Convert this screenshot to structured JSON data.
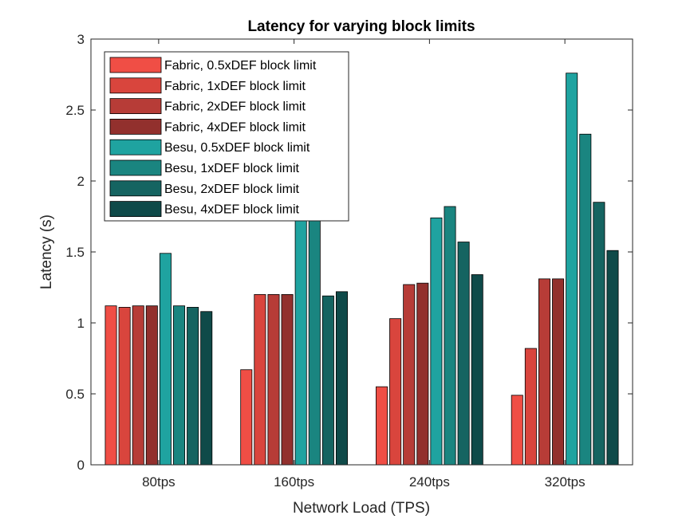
{
  "chart_data": {
    "type": "bar",
    "title": "Latency for varying block limits",
    "xlabel": "Network Load (TPS)",
    "ylabel": "Latency (s)",
    "categories": [
      "80tps",
      "160tps",
      "240tps",
      "320tps"
    ],
    "ylim": [
      0,
      3
    ],
    "yticks": [
      0,
      0.5,
      1,
      1.5,
      2,
      2.5,
      3
    ],
    "ytick_labels": [
      "0",
      "0.5",
      "1",
      "1.5",
      "2",
      "2.5",
      "3"
    ],
    "grid": false,
    "legend_position": "top-left",
    "series": [
      {
        "name": "Fabric, 0.5xDEF block limit",
        "color": "#f04e45",
        "values": [
          1.12,
          0.67,
          0.55,
          0.49
        ]
      },
      {
        "name": "Fabric, 1xDEF block limit",
        "color": "#d9453d",
        "values": [
          1.11,
          1.2,
          1.03,
          0.82
        ]
      },
      {
        "name": "Fabric, 2xDEF block limit",
        "color": "#b73c37",
        "values": [
          1.12,
          1.2,
          1.27,
          1.31
        ]
      },
      {
        "name": "Fabric, 4xDEF block limit",
        "color": "#92302d",
        "values": [
          1.12,
          1.2,
          1.28,
          1.31
        ]
      },
      {
        "name": "Besu, 0.5xDEF block limit",
        "color": "#1fa3a0",
        "values": [
          1.49,
          1.82,
          1.74,
          2.76
        ]
      },
      {
        "name": "Besu, 1xDEF block limit",
        "color": "#1a8580",
        "values": [
          1.12,
          1.82,
          1.82,
          2.33
        ]
      },
      {
        "name": "Besu, 2xDEF block limit",
        "color": "#156461",
        "values": [
          1.11,
          1.19,
          1.57,
          1.85
        ]
      },
      {
        "name": "Besu, 4xDEF block limit",
        "color": "#0f4a49",
        "values": [
          1.08,
          1.22,
          1.34,
          1.51
        ]
      }
    ]
  }
}
